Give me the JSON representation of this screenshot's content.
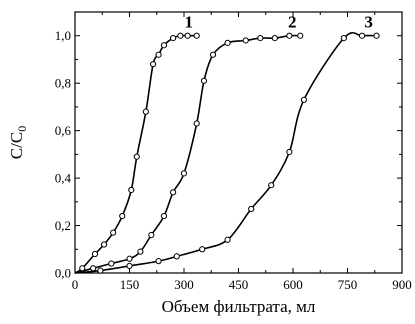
{
  "chart_data": {
    "type": "line",
    "xlabel": "Объем фильтрата, мл",
    "ylabel": "C/C",
    "ylabel_subscript": "0",
    "xlim": [
      0,
      900
    ],
    "ylim": [
      0,
      1.1
    ],
    "x_ticks": [
      0,
      150,
      300,
      450,
      600,
      750,
      900
    ],
    "x_tick_labels": [
      "0",
      "150",
      "300",
      "450",
      "600",
      "750",
      "900"
    ],
    "y_ticks": [
      0,
      0.2,
      0.4,
      0.6,
      0.8,
      1.0
    ],
    "y_tick_labels": [
      "0,0",
      "0,2",
      "0,4",
      "0,6",
      "0,8",
      "1,0"
    ],
    "grid": false,
    "legend": "none",
    "series": [
      {
        "label": "1",
        "points": [
          [
            0,
            0
          ],
          [
            20,
            0.02
          ],
          [
            55,
            0.08
          ],
          [
            80,
            0.12
          ],
          [
            105,
            0.17
          ],
          [
            130,
            0.24
          ],
          [
            155,
            0.35
          ],
          [
            170,
            0.49
          ],
          [
            195,
            0.68
          ],
          [
            215,
            0.88
          ],
          [
            230,
            0.92
          ],
          [
            245,
            0.96
          ],
          [
            270,
            0.99
          ],
          [
            290,
            1.0
          ],
          [
            310,
            1.0
          ],
          [
            335,
            1.0
          ]
        ]
      },
      {
        "label": "2",
        "points": [
          [
            0,
            0
          ],
          [
            50,
            0.02
          ],
          [
            100,
            0.04
          ],
          [
            150,
            0.06
          ],
          [
            180,
            0.09
          ],
          [
            210,
            0.16
          ],
          [
            245,
            0.24
          ],
          [
            270,
            0.34
          ],
          [
            300,
            0.42
          ],
          [
            335,
            0.63
          ],
          [
            355,
            0.81
          ],
          [
            380,
            0.92
          ],
          [
            420,
            0.97
          ],
          [
            470,
            0.98
          ],
          [
            510,
            0.99
          ],
          [
            550,
            0.99
          ],
          [
            590,
            1.0
          ],
          [
            620,
            1.0
          ]
        ]
      },
      {
        "label": "3",
        "points": [
          [
            0,
            0
          ],
          [
            70,
            0.01
          ],
          [
            150,
            0.03
          ],
          [
            230,
            0.05
          ],
          [
            280,
            0.07
          ],
          [
            350,
            0.1
          ],
          [
            420,
            0.14
          ],
          [
            485,
            0.27
          ],
          [
            540,
            0.37
          ],
          [
            590,
            0.51
          ],
          [
            630,
            0.73
          ],
          [
            740,
            0.99
          ],
          [
            790,
            1.0
          ],
          [
            830,
            1.0
          ]
        ]
      }
    ]
  }
}
